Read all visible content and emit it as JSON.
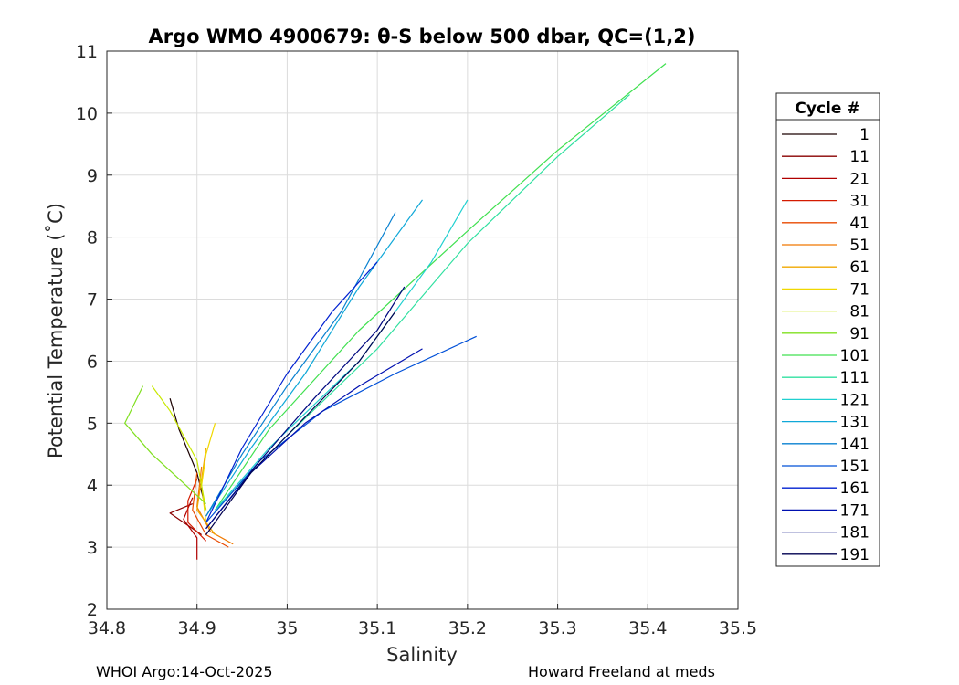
{
  "chart_data": {
    "type": "line",
    "title": "Argo WMO 4900679: θ-S below 500 dbar,  QC=(1,2)",
    "xlabel": "Salinity",
    "ylabel": "Potential Temperature (˚C)",
    "xlim": [
      34.8,
      35.5
    ],
    "ylim": [
      2,
      11
    ],
    "xticks": [
      "34.8",
      "34.9",
      "35",
      "35.1",
      "35.2",
      "35.3",
      "35.4",
      "35.5"
    ],
    "yticks": [
      "2",
      "3",
      "4",
      "5",
      "6",
      "7",
      "8",
      "9",
      "10",
      "11"
    ],
    "grid": true,
    "legend": {
      "title": "Cycle #",
      "placement": "outside-right",
      "entries": [
        {
          "label": "1",
          "color": "#1a0000"
        },
        {
          "label": "11",
          "color": "#8a0000"
        },
        {
          "label": "21",
          "color": "#b00000"
        },
        {
          "label": "31",
          "color": "#d41a00"
        },
        {
          "label": "41",
          "color": "#e84a00"
        },
        {
          "label": "51",
          "color": "#f07800"
        },
        {
          "label": "61",
          "color": "#f0a800"
        },
        {
          "label": "71",
          "color": "#f0d800"
        },
        {
          "label": "81",
          "color": "#c8e800"
        },
        {
          "label": "91",
          "color": "#80e020"
        },
        {
          "label": "101",
          "color": "#40e050"
        },
        {
          "label": "111",
          "color": "#30e0a0"
        },
        {
          "label": "121",
          "color": "#20d0d0"
        },
        {
          "label": "131",
          "color": "#10a8d8"
        },
        {
          "label": "141",
          "color": "#0880d0"
        },
        {
          "label": "151",
          "color": "#0050d8"
        },
        {
          "label": "161",
          "color": "#0020d0"
        },
        {
          "label": "171",
          "color": "#0010b0"
        },
        {
          "label": "181",
          "color": "#000880"
        },
        {
          "label": "191",
          "color": "#000050"
        }
      ]
    },
    "series": [
      {
        "name": "1",
        "color": "#1a0000",
        "s": [
          34.91,
          34.9,
          34.88,
          34.87
        ],
        "t": [
          3.6,
          4.2,
          4.9,
          5.4
        ]
      },
      {
        "name": "11",
        "color": "#8a0000",
        "s": [
          34.905,
          34.88,
          34.87,
          34.895
        ],
        "t": [
          3.2,
          3.45,
          3.55,
          3.7
        ]
      },
      {
        "name": "21",
        "color": "#b00000",
        "s": [
          34.9,
          34.9,
          34.885,
          34.895
        ],
        "t": [
          2.8,
          3.15,
          3.45,
          3.8
        ]
      },
      {
        "name": "31",
        "color": "#d41a00",
        "s": [
          34.91,
          34.89,
          34.89,
          34.9
        ],
        "t": [
          3.1,
          3.4,
          3.75,
          4.1
        ]
      },
      {
        "name": "41",
        "color": "#e84a00",
        "s": [
          34.935,
          34.91,
          34.895,
          34.9
        ],
        "t": [
          3.0,
          3.2,
          3.6,
          4.2
        ]
      },
      {
        "name": "51",
        "color": "#f07800",
        "s": [
          34.94,
          34.915,
          34.9,
          34.905
        ],
        "t": [
          3.05,
          3.25,
          3.65,
          4.3
        ]
      },
      {
        "name": "61",
        "color": "#f0a800",
        "s": [
          34.92,
          34.9,
          34.905,
          34.91
        ],
        "t": [
          3.2,
          3.6,
          4.1,
          4.6
        ]
      },
      {
        "name": "71",
        "color": "#f0d800",
        "s": [
          34.91,
          34.905,
          34.91,
          34.92
        ],
        "t": [
          3.4,
          4.0,
          4.5,
          5.0
        ]
      },
      {
        "name": "81",
        "color": "#c8e800",
        "s": [
          34.91,
          34.9,
          34.87,
          34.85
        ],
        "t": [
          3.6,
          4.4,
          5.2,
          5.6
        ]
      },
      {
        "name": "91",
        "color": "#80e020",
        "s": [
          34.91,
          34.85,
          34.82,
          34.84
        ],
        "t": [
          3.7,
          4.5,
          5.0,
          5.6
        ]
      },
      {
        "name": "101",
        "color": "#40e050",
        "s": [
          34.92,
          34.98,
          35.08,
          35.2,
          35.3,
          35.42
        ],
        "t": [
          3.6,
          4.9,
          6.5,
          8.1,
          9.4,
          10.8
        ]
      },
      {
        "name": "111",
        "color": "#30e0a0",
        "s": [
          34.92,
          35.0,
          35.1,
          35.2,
          35.3,
          35.38
        ],
        "t": [
          3.6,
          4.8,
          6.2,
          7.9,
          9.3,
          10.3
        ]
      },
      {
        "name": "121",
        "color": "#20d0d0",
        "s": [
          34.92,
          34.98,
          35.08,
          35.16,
          35.2
        ],
        "t": [
          3.6,
          4.6,
          6.0,
          7.6,
          8.6
        ]
      },
      {
        "name": "131",
        "color": "#10a8d8",
        "s": [
          34.91,
          34.96,
          35.02,
          35.08,
          35.15
        ],
        "t": [
          3.5,
          4.6,
          5.8,
          7.2,
          8.6
        ]
      },
      {
        "name": "141",
        "color": "#0880d0",
        "s": [
          34.91,
          34.95,
          35.0,
          35.06,
          35.12
        ],
        "t": [
          3.5,
          4.5,
          5.6,
          6.8,
          8.4
        ]
      },
      {
        "name": "151",
        "color": "#0050d8",
        "s": [
          34.91,
          34.97,
          35.04,
          35.12,
          35.21
        ],
        "t": [
          3.4,
          4.4,
          5.2,
          5.8,
          6.4
        ]
      },
      {
        "name": "161",
        "color": "#0020d0",
        "s": [
          34.91,
          34.95,
          35.0,
          35.05,
          35.1
        ],
        "t": [
          3.4,
          4.6,
          5.8,
          6.8,
          7.6
        ]
      },
      {
        "name": "171",
        "color": "#0010b0",
        "s": [
          34.91,
          34.96,
          35.02,
          35.08,
          35.15
        ],
        "t": [
          3.3,
          4.2,
          5.0,
          5.6,
          6.2
        ]
      },
      {
        "name": "181",
        "color": "#000880",
        "s": [
          34.91,
          34.97,
          35.03,
          35.1,
          35.13
        ],
        "t": [
          3.3,
          4.4,
          5.4,
          6.5,
          7.2
        ]
      },
      {
        "name": "191",
        "color": "#000050",
        "s": [
          34.91,
          34.96,
          35.02,
          35.08,
          35.12
        ],
        "t": [
          3.2,
          4.2,
          5.1,
          6.0,
          6.8
        ]
      }
    ]
  },
  "footer": {
    "left": "WHOI Argo:14-Oct-2025",
    "right": "Howard Freeland at meds"
  }
}
